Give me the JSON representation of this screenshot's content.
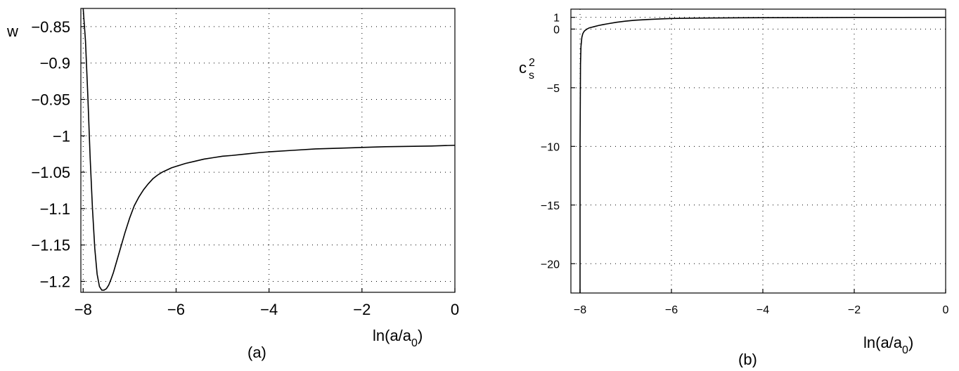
{
  "chart_data": [
    {
      "id": "a",
      "type": "line",
      "panel_label": "(a)",
      "ylabel": "w",
      "xlabel": "ln(a/a0)",
      "xlabel_main": "ln(a/a",
      "xlabel_sub": "0",
      "xlabel_close": ")",
      "xlim": [
        -8.05,
        0
      ],
      "ylim": [
        -1.215,
        -0.825
      ],
      "x_ticks": [
        -8,
        -6,
        -4,
        -2,
        0
      ],
      "x_tick_labels": [
        "−8",
        "−6",
        "−4",
        "−2",
        "0"
      ],
      "y_ticks": [
        -0.85,
        -0.9,
        -0.95,
        -1,
        -1.05,
        -1.1,
        -1.15,
        -1.2
      ],
      "y_tick_labels": [
        "−0.85",
        "−0.9",
        "−0.95",
        "−1",
        "−1.05",
        "−1.1",
        "−1.15",
        "−1.2"
      ],
      "grid": true,
      "series": [
        {
          "x": [
            -8.0,
            -7.95,
            -7.9,
            -7.85,
            -7.8,
            -7.75,
            -7.7,
            -7.65,
            -7.6,
            -7.55,
            -7.5,
            -7.45,
            -7.4,
            -7.35,
            -7.3,
            -7.25,
            -7.2,
            -7.1,
            -7.0,
            -6.9,
            -6.8,
            -6.7,
            -6.6,
            -6.5,
            -6.4,
            -6.3,
            -6.2,
            -6.1,
            -6.0,
            -5.8,
            -5.6,
            -5.4,
            -5.2,
            -5.0,
            -4.8,
            -4.5,
            -4.2,
            -4.0,
            -3.5,
            -3.0,
            -2.5,
            -2.0,
            -1.5,
            -1.0,
            -0.5,
            0.0
          ],
          "y": [
            -0.825,
            -0.87,
            -0.945,
            -1.03,
            -1.1,
            -1.155,
            -1.19,
            -1.207,
            -1.212,
            -1.212,
            -1.21,
            -1.205,
            -1.197,
            -1.188,
            -1.177,
            -1.166,
            -1.155,
            -1.133,
            -1.113,
            -1.096,
            -1.084,
            -1.074,
            -1.066,
            -1.059,
            -1.054,
            -1.05,
            -1.047,
            -1.044,
            -1.042,
            -1.038,
            -1.035,
            -1.032,
            -1.03,
            -1.028,
            -1.027,
            -1.025,
            -1.023,
            -1.022,
            -1.02,
            -1.018,
            -1.017,
            -1.016,
            -1.015,
            -1.0145,
            -1.014,
            -1.013
          ]
        }
      ]
    },
    {
      "id": "b",
      "type": "line",
      "panel_label": "(b)",
      "ylabel": "c_s^2",
      "ylabel_main": "c",
      "ylabel_sub": "s",
      "ylabel_sup": "2",
      "xlabel": "ln(a/a0)",
      "xlabel_main": "ln(a/a",
      "xlabel_sub": "0",
      "xlabel_close": ")",
      "xlim": [
        -8.2,
        0
      ],
      "ylim": [
        -22.5,
        1.7
      ],
      "x_ticks": [
        -8,
        -6,
        -4,
        -2,
        0
      ],
      "x_tick_labels": [
        "−8",
        "−6",
        "−4",
        "−2",
        "0"
      ],
      "y_ticks": [
        1,
        0,
        -5,
        -10,
        -15,
        -20
      ],
      "y_tick_labels": [
        "1",
        "0",
        "−5",
        "−10",
        "−15",
        "−20"
      ],
      "grid": true,
      "series": [
        {
          "x": [
            -8.0,
            -8.0,
            -7.99,
            -7.98,
            -7.96,
            -7.94,
            -7.92,
            -7.9,
            -7.85,
            -7.8,
            -7.75,
            -7.7,
            -7.6,
            -7.5,
            -7.4,
            -7.2,
            -7.0,
            -6.8,
            -6.5,
            -6.2,
            -6.0,
            -5.5,
            -5.0,
            -4.5,
            -4.0,
            -3.0,
            -2.0,
            -1.0,
            0.0
          ],
          "y": [
            -22.5,
            -10.0,
            -3.0,
            -1.5,
            -0.7,
            -0.4,
            -0.25,
            -0.15,
            0.0,
            0.1,
            0.15,
            0.2,
            0.3,
            0.38,
            0.45,
            0.58,
            0.68,
            0.75,
            0.82,
            0.87,
            0.9,
            0.93,
            0.95,
            0.96,
            0.97,
            0.98,
            0.99,
            0.995,
            1.0
          ]
        }
      ]
    }
  ]
}
